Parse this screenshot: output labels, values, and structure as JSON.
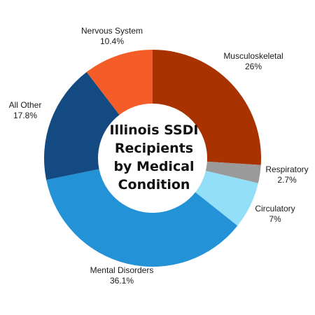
{
  "chart_data": {
    "type": "pie",
    "title_lines": [
      "Illinois SSDI",
      "Recipients",
      "by Medical",
      "Condition"
    ],
    "donut": true,
    "slices": [
      {
        "label": "Musculoskeletal",
        "value_label": "26%",
        "value": 26.0,
        "color": "#a83200"
      },
      {
        "label": "Respiratory",
        "value_label": "2.7%",
        "value": 2.7,
        "color": "#9a9a9a"
      },
      {
        "label": "Circulatory",
        "value_label": "7%",
        "value": 7.0,
        "color": "#93dff7"
      },
      {
        "label": "Mental Disorders",
        "value_label": "36.1%",
        "value": 36.1,
        "color": "#2492d6"
      },
      {
        "label": "All Other",
        "value_label": "17.8%",
        "value": 17.8,
        "color": "#134a82"
      },
      {
        "label": "Nervous System",
        "value_label": "10.4%",
        "value": 10.4,
        "color": "#f45d27"
      }
    ]
  }
}
